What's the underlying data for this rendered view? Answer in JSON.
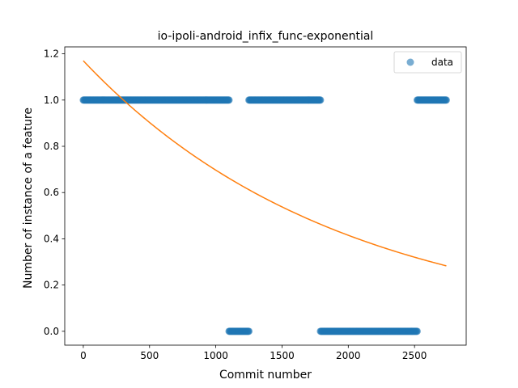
{
  "chart_data": {
    "type": "scatter",
    "title": "io-ipoli-android_infix_func-exponential",
    "xlabel": "Commit number",
    "ylabel": "Number of instance of a feature",
    "xlim": [
      -140,
      2890
    ],
    "ylim": [
      -0.06,
      1.23
    ],
    "xticks": [
      0,
      500,
      1000,
      1500,
      2000,
      2500
    ],
    "xtick_labels": [
      "0",
      "500",
      "1000",
      "1500",
      "2000",
      "2500"
    ],
    "yticks": [
      0.0,
      0.2,
      0.4,
      0.6,
      0.8,
      1.0,
      1.2
    ],
    "ytick_labels": [
      "0.0",
      "0.2",
      "0.4",
      "0.6",
      "0.8",
      "1.0",
      "1.2"
    ],
    "grid": false,
    "legend": {
      "position": "upper right",
      "entries": [
        "data"
      ]
    },
    "series": [
      {
        "name": "data",
        "kind": "scatter",
        "color": "#1f77b4",
        "alpha": 0.6,
        "segments": [
          {
            "x_start": 0,
            "x_end": 1100,
            "y": 1.0
          },
          {
            "x_start": 1100,
            "x_end": 1250,
            "y": 0.0
          },
          {
            "x_start": 1250,
            "x_end": 1790,
            "y": 1.0
          },
          {
            "x_start": 1790,
            "x_end": 2520,
            "y": 0.0
          },
          {
            "x_start": 2520,
            "x_end": 2740,
            "y": 1.0
          }
        ]
      },
      {
        "name": "",
        "kind": "line",
        "color": "#ff7f0e",
        "function": "exponential",
        "a": 1.17,
        "b": 0.000518,
        "x_range": [
          0,
          2740
        ]
      }
    ]
  }
}
